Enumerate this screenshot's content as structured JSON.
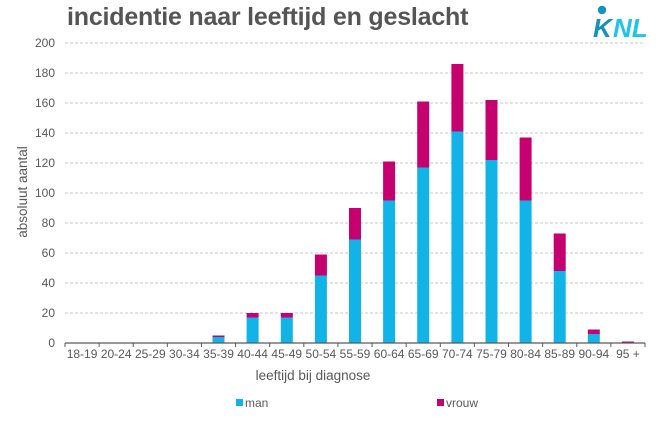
{
  "header": {
    "title": "incidentie naar leeftijd en geslacht",
    "logo_text": "KNL"
  },
  "colors": {
    "man": "#12b4e8",
    "vrouw": "#c5006f",
    "logo_dark": "#1393b8",
    "logo_light": "#1ec3f0",
    "grid": "#c8c8c8",
    "axis": "#595959"
  },
  "chart_data": {
    "type": "bar",
    "stacked": true,
    "title": "incidentie naar leeftijd en geslacht",
    "xlabel": "leeftijd bij diagnose",
    "ylabel": "absoluut aantal",
    "ylim": [
      0,
      200
    ],
    "yticks": [
      0,
      20,
      40,
      60,
      80,
      100,
      120,
      140,
      160,
      180,
      200
    ],
    "grid": true,
    "legend": "bottom",
    "categories": [
      "18-19",
      "20-24",
      "25-29",
      "30-34",
      "35-39",
      "40-44",
      "45-49",
      "50-54",
      "55-59",
      "60-64",
      "65-69",
      "70-74",
      "75-79",
      "80-84",
      "85-89",
      "90-94",
      "95 +"
    ],
    "series": [
      {
        "name": "man",
        "values": [
          0,
          0,
          0,
          0,
          4,
          17,
          17,
          45,
          69,
          95,
          117,
          141,
          122,
          95,
          48,
          6,
          0
        ]
      },
      {
        "name": "vrouw",
        "values": [
          0,
          0,
          0,
          0,
          1,
          3,
          3,
          14,
          21,
          26,
          44,
          45,
          40,
          42,
          25,
          3,
          1
        ]
      }
    ]
  }
}
